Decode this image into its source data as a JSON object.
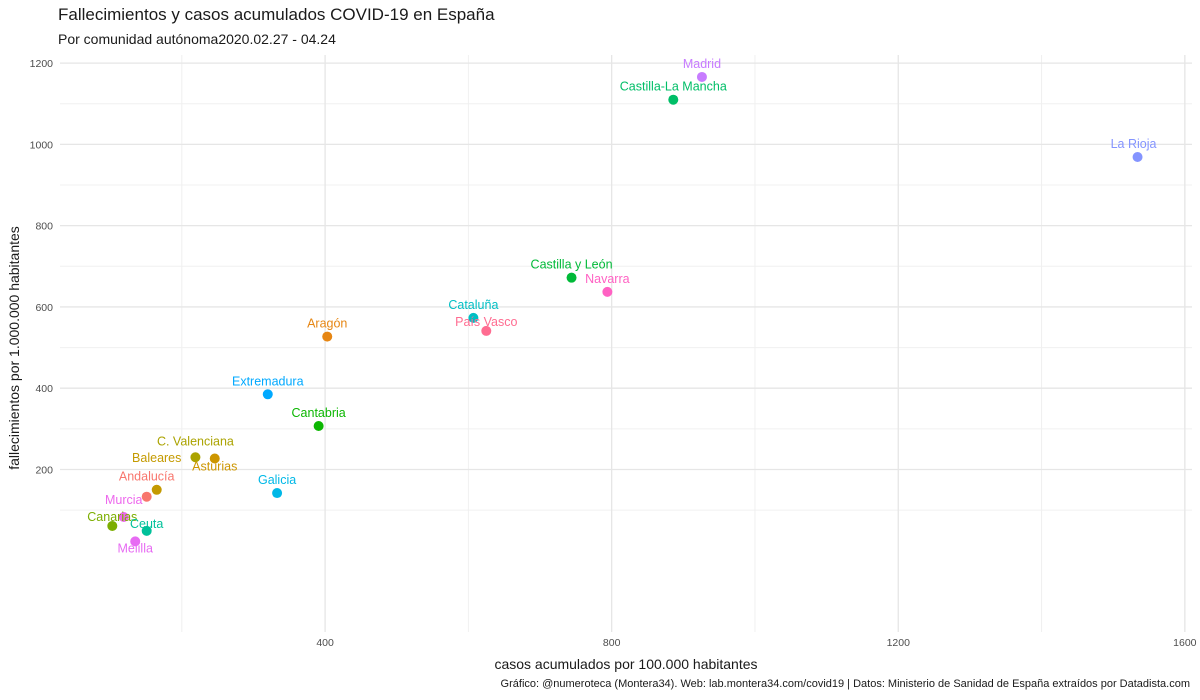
{
  "chart_data": {
    "type": "scatter",
    "title": "Fallecimientos y casos acumulados COVID-19 en España",
    "subtitle": "Por comunidad autónoma2020.02.27 - 04.24",
    "xlabel": "casos acumulados por 100.000 habitantes",
    "ylabel": "fallecimientos por 1.000.000 habitantes",
    "caption": "Gráfico: @numeroteca (Montera34). Web: lab.montera34.com/covid19 | Datos: Ministerio de Sanidad de España extraídos por Datadista.com",
    "xlim": [
      30,
      1610
    ],
    "ylim": [
      -200,
      1220
    ],
    "xticks": [
      400,
      800,
      1200,
      1600
    ],
    "yticks": [
      200,
      400,
      600,
      800,
      1000,
      1200
    ],
    "grid": true,
    "legend": "none",
    "points": [
      {
        "name": "Madrid",
        "x": 926,
        "y": 1166,
        "color": "#C77CFF"
      },
      {
        "name": "Castilla-La Mancha",
        "x": 886,
        "y": 1110,
        "color": "#00BE67"
      },
      {
        "name": "La Rioja",
        "x": 1534,
        "y": 969,
        "color": "#8494FF"
      },
      {
        "name": "Castilla y León",
        "x": 744,
        "y": 672,
        "color": "#00BA38"
      },
      {
        "name": "Navarra",
        "x": 794,
        "y": 637,
        "color": "#FF61C3"
      },
      {
        "name": "Cataluña",
        "x": 607,
        "y": 573,
        "color": "#00BFC4"
      },
      {
        "name": "País Vasco",
        "x": 625,
        "y": 541,
        "color": "#FF6C91"
      },
      {
        "name": "Aragón",
        "x": 403,
        "y": 527,
        "color": "#E68613"
      },
      {
        "name": "Extremadura",
        "x": 320,
        "y": 385,
        "color": "#00A9FF"
      },
      {
        "name": "Cantabria",
        "x": 391,
        "y": 307,
        "color": "#0CB702"
      },
      {
        "name": "C. Valenciana",
        "x": 219,
        "y": 230,
        "color": "#ABA300"
      },
      {
        "name": "Asturias",
        "x": 246,
        "y": 227,
        "color": "#CD9600"
      },
      {
        "name": "Baleares",
        "x": 165,
        "y": 150,
        "color": "#C49A00"
      },
      {
        "name": "Galicia",
        "x": 333,
        "y": 142,
        "color": "#00B8E7"
      },
      {
        "name": "Andalucía",
        "x": 151,
        "y": 133,
        "color": "#F8766D"
      },
      {
        "name": "Murcia",
        "x": 119,
        "y": 83,
        "color": "#ED68ED"
      },
      {
        "name": "Canarias",
        "x": 103,
        "y": 61,
        "color": "#7CAE00"
      },
      {
        "name": "Ceuta",
        "x": 151,
        "y": 49,
        "color": "#00C19A"
      },
      {
        "name": "Melilla",
        "x": 135,
        "y": 23,
        "color": "#E76BF3"
      }
    ]
  }
}
